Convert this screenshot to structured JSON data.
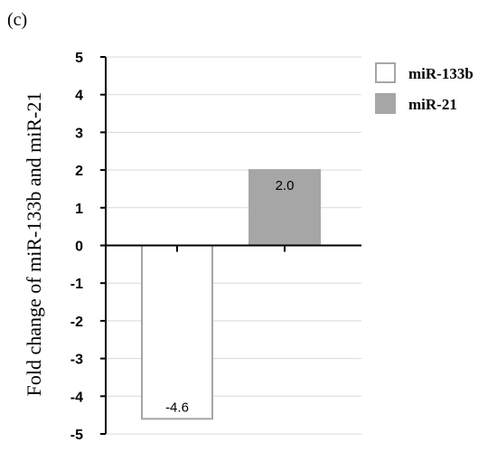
{
  "panel_label": "(c)",
  "chart_data": {
    "type": "bar",
    "categories": [
      "miR-133b",
      "miR-21"
    ],
    "values": [
      -4.6,
      2.0
    ],
    "data_labels": [
      "-4.6",
      "2.0"
    ],
    "title": "",
    "xlabel": "",
    "ylabel": "Fold change of miR-133b and miR-21",
    "ylim": [
      -5,
      5
    ],
    "yticks": [
      5,
      4,
      3,
      2,
      1,
      0,
      -1,
      -2,
      -3,
      -4,
      -5
    ],
    "ytick_labels": [
      "5",
      "4",
      "3",
      "2",
      "1",
      "0",
      "-1",
      "-2",
      "-3",
      "-4",
      "-5"
    ],
    "grid": true,
    "legend_position": "top-right",
    "series": [
      {
        "name": "miR-133b",
        "fill": "#ffffff",
        "stroke": "#a6a6a6"
      },
      {
        "name": "miR-21",
        "fill": "#a6a6a6",
        "stroke": "#a6a6a6"
      }
    ]
  }
}
